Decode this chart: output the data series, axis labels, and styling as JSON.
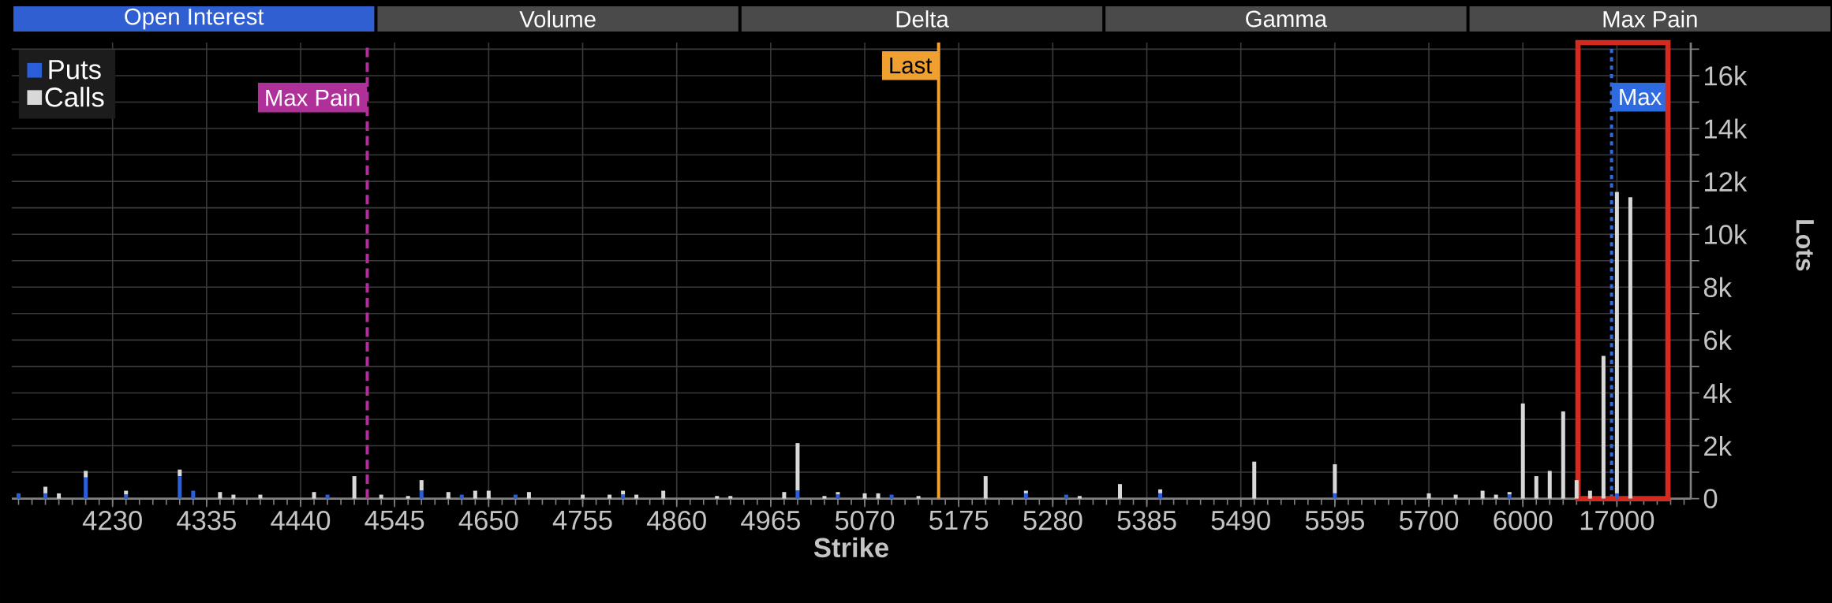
{
  "chart_data": {
    "type": "bar",
    "stacked": true,
    "annotations": [
      "Open Interest",
      "Volume",
      "Delta",
      "Gamma",
      "Max Pain",
      "Max Pain",
      "Last",
      "Max"
    ],
    "xlabel": "Strike",
    "ylabel": "Lots",
    "categories": [
      null,
      null,
      null,
      null,
      null,
      null,
      null,
      "4230",
      null,
      null,
      null,
      null,
      null,
      null,
      "4335",
      null,
      null,
      null,
      null,
      null,
      null,
      "4440",
      null,
      null,
      null,
      null,
      null,
      null,
      "4545",
      null,
      null,
      null,
      null,
      null,
      null,
      "4650",
      null,
      null,
      null,
      null,
      null,
      null,
      "4755",
      null,
      null,
      null,
      null,
      null,
      null,
      "4860",
      null,
      null,
      null,
      null,
      null,
      null,
      "4965",
      null,
      null,
      null,
      null,
      null,
      null,
      "5070",
      null,
      null,
      null,
      null,
      null,
      null,
      "5175",
      null,
      null,
      null,
      null,
      null,
      null,
      "5280",
      null,
      null,
      null,
      null,
      null,
      null,
      "5385",
      null,
      null,
      null,
      null,
      null,
      null,
      "5490",
      null,
      null,
      null,
      null,
      null,
      null,
      "5595",
      null,
      null,
      null,
      null,
      null,
      null,
      "5700",
      null,
      null,
      null,
      null,
      null,
      null,
      "6000",
      null,
      null,
      null,
      null,
      null,
      null,
      "17000",
      null,
      null,
      null,
      null,
      null
    ],
    "series": [
      {
        "name": "Puts",
        "color": "#2b5fd9",
        "values": [
          200,
          null,
          200,
          null,
          null,
          800,
          null,
          null,
          150,
          null,
          null,
          null,
          850,
          300,
          null,
          null,
          null,
          null,
          null,
          null,
          null,
          null,
          null,
          150,
          null,
          null,
          null,
          null,
          null,
          null,
          300,
          null,
          null,
          150,
          null,
          null,
          null,
          150,
          null,
          null,
          null,
          null,
          null,
          null,
          null,
          150,
          null,
          null,
          null,
          null,
          null,
          null,
          null,
          null,
          null,
          null,
          null,
          null,
          300,
          null,
          null,
          150,
          null,
          null,
          null,
          150,
          null,
          null,
          null,
          null,
          null,
          null,
          null,
          null,
          null,
          200,
          null,
          null,
          150,
          null,
          null,
          null,
          null,
          null,
          null,
          200,
          null,
          null,
          null,
          null,
          null,
          null,
          null,
          null,
          null,
          null,
          null,
          null,
          200,
          null,
          null,
          null,
          null,
          null,
          null,
          null,
          null,
          null,
          null,
          null,
          null,
          150,
          null,
          null,
          null,
          null,
          null,
          null,
          null,
          200,
          null,
          null,
          null,
          null,
          null
        ]
      },
      {
        "name": "Calls",
        "color": "#d8d8d8",
        "values": [
          null,
          null,
          250,
          200,
          null,
          250,
          null,
          null,
          150,
          null,
          null,
          null,
          250,
          null,
          null,
          250,
          150,
          null,
          150,
          null,
          null,
          null,
          250,
          null,
          null,
          850,
          null,
          150,
          null,
          100,
          400,
          null,
          250,
          null,
          300,
          300,
          null,
          null,
          250,
          null,
          null,
          null,
          150,
          null,
          150,
          150,
          150,
          null,
          300,
          null,
          null,
          null,
          100,
          100,
          null,
          null,
          null,
          250,
          1800,
          null,
          100,
          100,
          null,
          200,
          200,
          null,
          null,
          100,
          null,
          null,
          null,
          null,
          850,
          null,
          null,
          100,
          null,
          null,
          null,
          100,
          null,
          null,
          550,
          null,
          null,
          150,
          null,
          null,
          null,
          null,
          null,
          null,
          1400,
          null,
          null,
          null,
          null,
          null,
          1100,
          null,
          null,
          null,
          null,
          null,
          null,
          200,
          null,
          150,
          null,
          300,
          150,
          100,
          3600,
          850,
          1050,
          3300,
          700,
          300,
          5400,
          11400,
          11400,
          null,
          null,
          null,
          null
        ]
      }
    ],
    "ylim": [
      0,
      17250
    ],
    "yticks": [
      0,
      {
        "value": 1000,
        "label": null
      },
      {
        "value": 2000,
        "label": "2k"
      },
      {
        "value": 3000,
        "label": null
      },
      {
        "value": 4000,
        "label": "4k"
      },
      {
        "value": 5000,
        "label": null
      },
      {
        "value": 6000,
        "label": "6k"
      },
      {
        "value": 7000,
        "label": null
      },
      {
        "value": 8000,
        "label": "8k"
      },
      {
        "value": 9000,
        "label": null
      },
      {
        "value": 10000,
        "label": "10k"
      },
      {
        "value": 11000,
        "label": null
      },
      {
        "value": 12000,
        "label": "12k"
      },
      {
        "value": 13000,
        "label": null
      },
      {
        "value": 14000,
        "label": "14k"
      },
      {
        "value": 15000,
        "label": null
      },
      {
        "value": 16000,
        "label": "16k"
      },
      {
        "value": 17000,
        "label": null
      }
    ],
    "grid": true,
    "legend": "top left"
  }
}
